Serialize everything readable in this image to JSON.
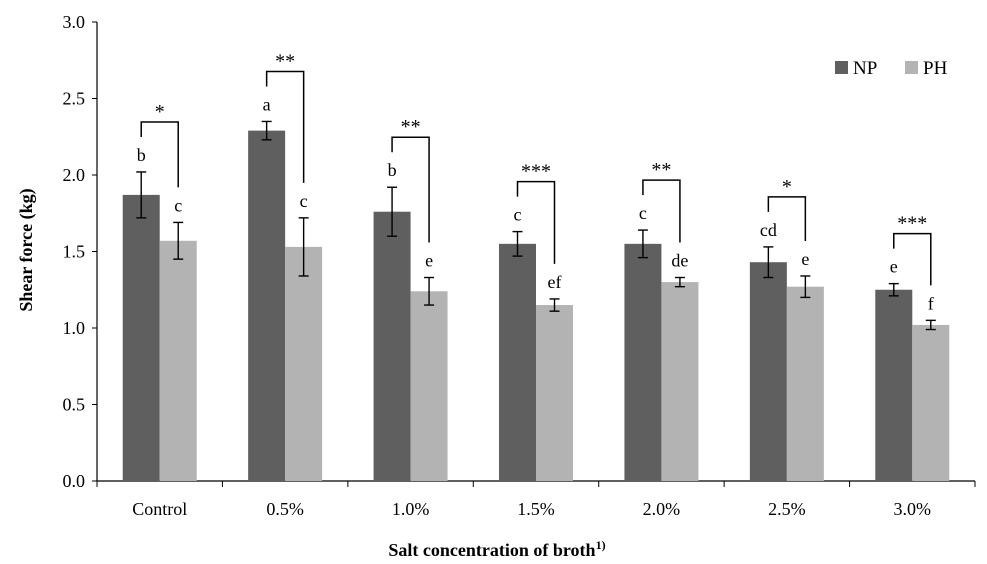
{
  "chart_data": {
    "type": "bar",
    "title": "",
    "xlabel": "Salt concentration of broth",
    "xlabel_superscript": "1)",
    "ylabel": "Shear force (kg)",
    "ylim": [
      0,
      3.0
    ],
    "yticks": [
      "0.0",
      "0.5",
      "1.0",
      "1.5",
      "2.0",
      "2.5",
      "3.0"
    ],
    "grid": false,
    "legend_position": "top-right",
    "categories": [
      "Control",
      "0.5%",
      "1.0%",
      "1.5%",
      "2.0%",
      "2.5%",
      "3.0%"
    ],
    "series": [
      {
        "name": "NP",
        "color": "#5f5f5f",
        "values": [
          1.87,
          2.29,
          1.76,
          1.55,
          1.55,
          1.43,
          1.25
        ],
        "errors": [
          0.15,
          0.06,
          0.16,
          0.08,
          0.09,
          0.1,
          0.04
        ],
        "letters": [
          "b",
          "a",
          "b",
          "c",
          "c",
          "cd",
          "e"
        ]
      },
      {
        "name": "PH",
        "color": "#b3b3b3",
        "values": [
          1.57,
          1.53,
          1.24,
          1.15,
          1.3,
          1.27,
          1.02
        ],
        "errors": [
          0.12,
          0.19,
          0.09,
          0.04,
          0.03,
          0.07,
          0.03
        ],
        "letters": [
          "c",
          "c",
          "e",
          "ef",
          "de",
          "e",
          "f"
        ]
      }
    ],
    "significance": [
      "*",
      "**",
      "**",
      "***",
      "**",
      "*",
      "***"
    ]
  }
}
